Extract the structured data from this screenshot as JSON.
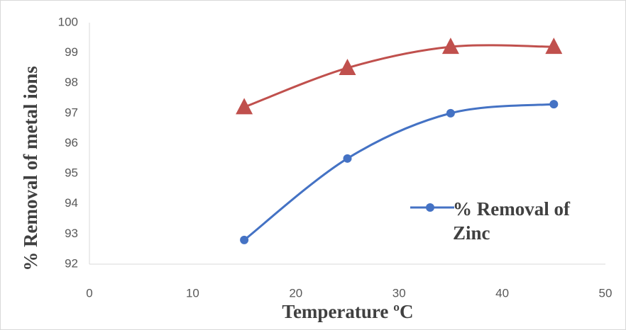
{
  "chart_data": {
    "type": "scatter",
    "x_label": "Temperature ºC",
    "y_label": "% Removal of metal ions",
    "x": [
      15,
      25,
      35,
      45
    ],
    "series": [
      {
        "name": "% Removal of Zinc",
        "color": "#4472c4",
        "marker": "circle",
        "values": [
          92.8,
          95.5,
          97.0,
          97.3
        ]
      },
      {
        "color": "#c0504d",
        "marker": "triangle",
        "values": [
          97.2,
          98.5,
          99.2,
          99.2
        ]
      }
    ],
    "xlim": [
      0,
      50
    ],
    "xticks": [
      0,
      10,
      20,
      30,
      40,
      50
    ],
    "ylim": [
      92,
      100
    ],
    "yticks": [
      92,
      93,
      94,
      95,
      96,
      97,
      98,
      99,
      100
    ],
    "smooth": true,
    "grid": false
  }
}
